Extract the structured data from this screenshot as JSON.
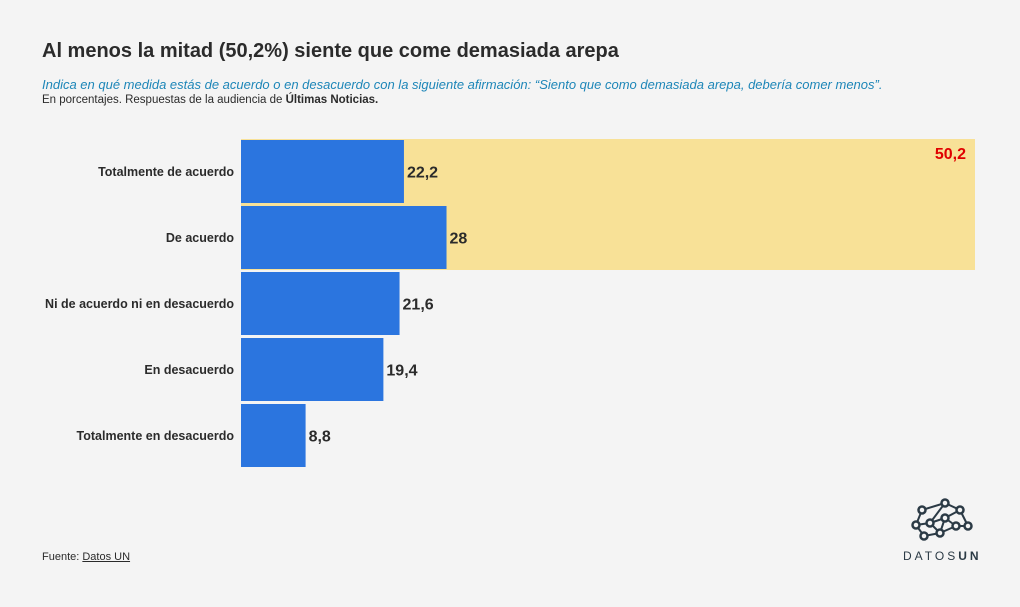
{
  "title": "Al menos la mitad (50,2%) siente que come demasiada arepa",
  "subtitle": "Indica en qué medida estás de acuerdo o en desacuerdo con la siguiente afirmación: “Siento que como demasiada arepa, debería comer menos”.",
  "note": {
    "prefix": "En porcentajes. Respuestas de la audiencia de ",
    "outlet": "Últimas Noticias."
  },
  "source": {
    "label": "Fuente: ",
    "link": "Datos UN"
  },
  "logo": {
    "text_light": "DATOS",
    "text_bold": "UN"
  },
  "colors": {
    "bar": "#2b75df",
    "highlight": "#f8e197",
    "highlight_label": "#e00000",
    "subtitle": "#1d86b8"
  },
  "chart_data": {
    "type": "bar",
    "orientation": "horizontal",
    "categories": [
      "Totalmente de acuerdo",
      "De acuerdo",
      "Ni de acuerdo ni en desacuerdo",
      "En desacuerdo",
      "Totalmente en desacuerdo"
    ],
    "values": [
      22.2,
      28,
      21.6,
      19.4,
      8.8
    ],
    "value_labels": [
      "22,2",
      "28",
      "21,6",
      "19,4",
      "8,8"
    ],
    "highlight": {
      "categories": [
        "Totalmente de acuerdo",
        "De acuerdo"
      ],
      "total": 50.2,
      "label": "50,2"
    },
    "xlim": [
      0,
      100
    ],
    "grid": false,
    "legend": "none"
  }
}
